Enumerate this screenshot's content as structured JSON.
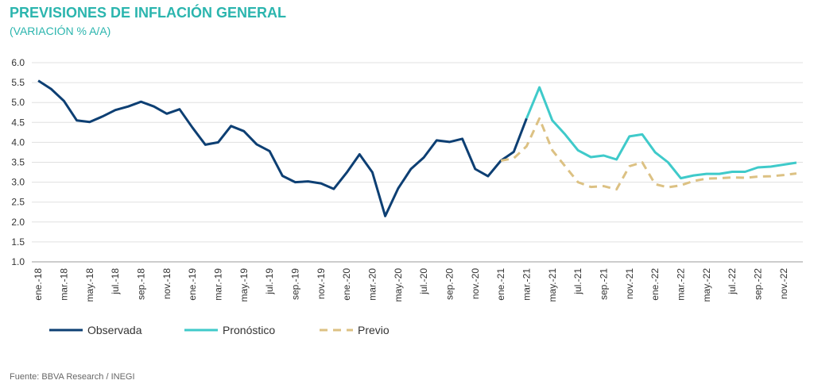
{
  "chart_data": {
    "type": "line",
    "title": "PREVISIONES DE INFLACIÓN GENERAL",
    "subtitle": "(VARIACIÓN % A/A)",
    "source": "Fuente: BBVA Research / INEGI",
    "categories": [
      "ene.-18",
      null,
      "mar.-18",
      null,
      "may.-18",
      null,
      "jul.-18",
      null,
      "sep.-18",
      null,
      "nov.-18",
      null,
      "ene.-19",
      null,
      "mar.-19",
      null,
      "may.-19",
      null,
      "jul.-19",
      null,
      "sep.-19",
      null,
      "nov.-19",
      null,
      "ene.-20",
      null,
      "mar.-20",
      null,
      "may.-20",
      null,
      "jul.-20",
      null,
      "sep.-20",
      null,
      "nov.-20",
      null,
      "ene.-21",
      null,
      "mar.-21",
      null,
      "may.-21",
      null,
      "jul.-21",
      null,
      "sep.-21",
      null,
      "nov.-21",
      null,
      "ene.-22",
      null,
      "mar.-22",
      null,
      "may.-22",
      null,
      "jul.-22",
      null,
      "sep.-22",
      null,
      "nov.-22",
      null
    ],
    "series": [
      {
        "name": "Observada",
        "color": "#0d3f73",
        "dash": false,
        "values": [
          5.55,
          5.34,
          5.04,
          4.55,
          4.51,
          4.65,
          4.81,
          4.9,
          5.02,
          4.9,
          4.72,
          4.83,
          4.37,
          3.94,
          4.0,
          4.41,
          4.28,
          3.95,
          3.78,
          3.16,
          3.0,
          3.02,
          2.97,
          2.83,
          3.24,
          3.7,
          3.25,
          2.15,
          2.84,
          3.33,
          3.62,
          4.05,
          4.01,
          4.09,
          3.33,
          3.15,
          3.54,
          3.76,
          4.6,
          null,
          null,
          null,
          null,
          null,
          null,
          null,
          null,
          null,
          null,
          null,
          null,
          null,
          null,
          null,
          null,
          null,
          null,
          null,
          null,
          null
        ]
      },
      {
        "name": "Pronóstico",
        "color": "#3fcaca",
        "dash": false,
        "values": [
          null,
          null,
          null,
          null,
          null,
          null,
          null,
          null,
          null,
          null,
          null,
          null,
          null,
          null,
          null,
          null,
          null,
          null,
          null,
          null,
          null,
          null,
          null,
          null,
          null,
          null,
          null,
          null,
          null,
          null,
          null,
          null,
          null,
          null,
          null,
          null,
          null,
          null,
          4.6,
          5.38,
          4.55,
          4.2,
          3.8,
          3.63,
          3.67,
          3.57,
          4.15,
          4.2,
          3.75,
          3.5,
          3.1,
          3.17,
          3.21,
          3.21,
          3.26,
          3.26,
          3.37,
          3.39,
          3.44,
          3.49
        ]
      },
      {
        "name": "Previo",
        "color": "#dcc183",
        "dash": true,
        "values": [
          null,
          null,
          null,
          null,
          null,
          null,
          null,
          null,
          null,
          null,
          null,
          null,
          null,
          null,
          null,
          null,
          null,
          null,
          null,
          null,
          null,
          null,
          null,
          null,
          null,
          null,
          null,
          null,
          null,
          null,
          null,
          null,
          null,
          null,
          null,
          null,
          3.54,
          3.6,
          3.9,
          4.6,
          3.8,
          3.4,
          3.0,
          2.88,
          2.9,
          2.82,
          3.4,
          3.5,
          2.95,
          2.87,
          2.92,
          3.03,
          3.09,
          3.1,
          3.12,
          3.11,
          3.14,
          3.15,
          3.18,
          3.22
        ]
      }
    ],
    "ylim": [
      1,
      6
    ],
    "yticks": [
      {
        "value": 1,
        "label": "1.0"
      },
      {
        "value": 1.5,
        "label": "1.5"
      },
      {
        "value": 2,
        "label": "2.0"
      },
      {
        "value": 2.5,
        "label": "2.5"
      },
      {
        "value": 3,
        "label": "3.0"
      },
      {
        "value": 3.5,
        "label": "3.5"
      },
      {
        "value": 4,
        "label": "4.0"
      },
      {
        "value": 4.5,
        "label": "4.5"
      },
      {
        "value": 5,
        "label": "5.0"
      },
      {
        "value": 5.5,
        "label": "5.5"
      },
      {
        "value": 6,
        "label": "6.0"
      }
    ],
    "grid": true
  }
}
